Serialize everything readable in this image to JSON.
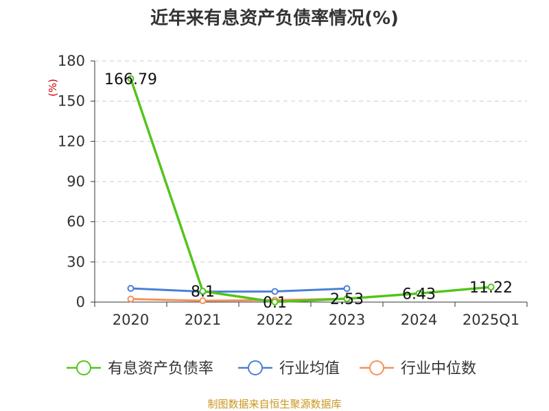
{
  "title": "近年来有息资产负债率情况(%)",
  "ylabel": "(%)",
  "footer": "制图数据来自恒生聚源数据库",
  "colors": {
    "series_0": "#52c41a",
    "series_1": "#4a7fd4",
    "series_2": "#f5905a",
    "grid": "#cccccc",
    "axis": "#333333",
    "ylabel": "#cc0000",
    "footer": "#c8961e"
  },
  "chart_data": {
    "type": "line",
    "categories": [
      "2020",
      "2021",
      "2022",
      "2023",
      "2024",
      "2025Q1"
    ],
    "ylim": [
      0,
      180
    ],
    "yticks": [
      0,
      30,
      60,
      90,
      120,
      150,
      180
    ],
    "grid": true,
    "legend_position": "bottom",
    "series": [
      {
        "name": "有息资产负债率",
        "values": [
          166.79,
          8.1,
          0.1,
          2.53,
          6.43,
          11.22
        ],
        "labels": [
          "166.79",
          "8.1",
          "0.1",
          "2.53",
          "6.43",
          "11.22"
        ]
      },
      {
        "name": "行业均值",
        "values": [
          10.2,
          7.8,
          7.9,
          10.1,
          null,
          null
        ]
      },
      {
        "name": "行业中位数",
        "values": [
          2.3,
          1.0,
          1.5,
          2.5,
          null,
          null
        ]
      }
    ]
  }
}
